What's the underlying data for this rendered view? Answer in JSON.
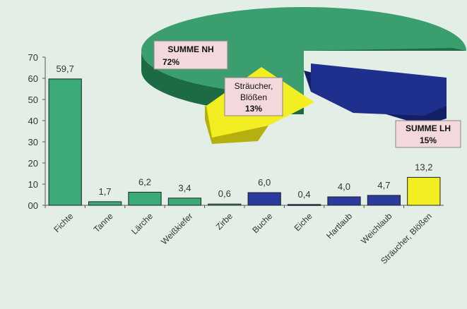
{
  "chart_data": [
    {
      "type": "bar",
      "categories": [
        "Fichte",
        "Tanne",
        "Lärche",
        "Weißkiefer",
        "Zirbe",
        "Buche",
        "Eiche",
        "Hartlaub",
        "Weichlaub",
        "Sträucher, Blößen"
      ],
      "values": [
        59.7,
        1.7,
        6.2,
        3.4,
        0.6,
        6.0,
        0.4,
        4.0,
        4.7,
        13.2
      ],
      "value_labels": [
        "59,7",
        "1,7",
        "6,2",
        "3,4",
        "0,6",
        "6,0",
        "0,4",
        "4,0",
        "4,7",
        "13,2"
      ],
      "bar_groups": [
        "NH",
        "NH",
        "NH",
        "NH",
        "NH",
        "LH",
        "LH",
        "LH",
        "LH",
        "SB"
      ],
      "ylim": [
        0,
        70
      ],
      "yticks": [
        "0",
        "10",
        "20",
        "30",
        "40",
        "50",
        "60",
        "70"
      ],
      "y_zero_label": "00",
      "grid": false,
      "colors": {
        "NH": "#3aaa77",
        "LH": "#2b3a9e",
        "SB": "#f2ee22"
      }
    },
    {
      "type": "pie",
      "slices": [
        {
          "label_top": "SUMME NH",
          "label_bottom": "72%",
          "value": 72,
          "color": "#3a9e6e"
        },
        {
          "label_top": "SUMME LH",
          "label_bottom": "15%",
          "value": 15,
          "color": "#1e2f8e"
        },
        {
          "label_top": "Sträucher,",
          "label_mid": "Blößen",
          "label_bottom": "13%",
          "value": 13,
          "color": "#f2ee22"
        }
      ],
      "style": "3d-exploded"
    }
  ]
}
